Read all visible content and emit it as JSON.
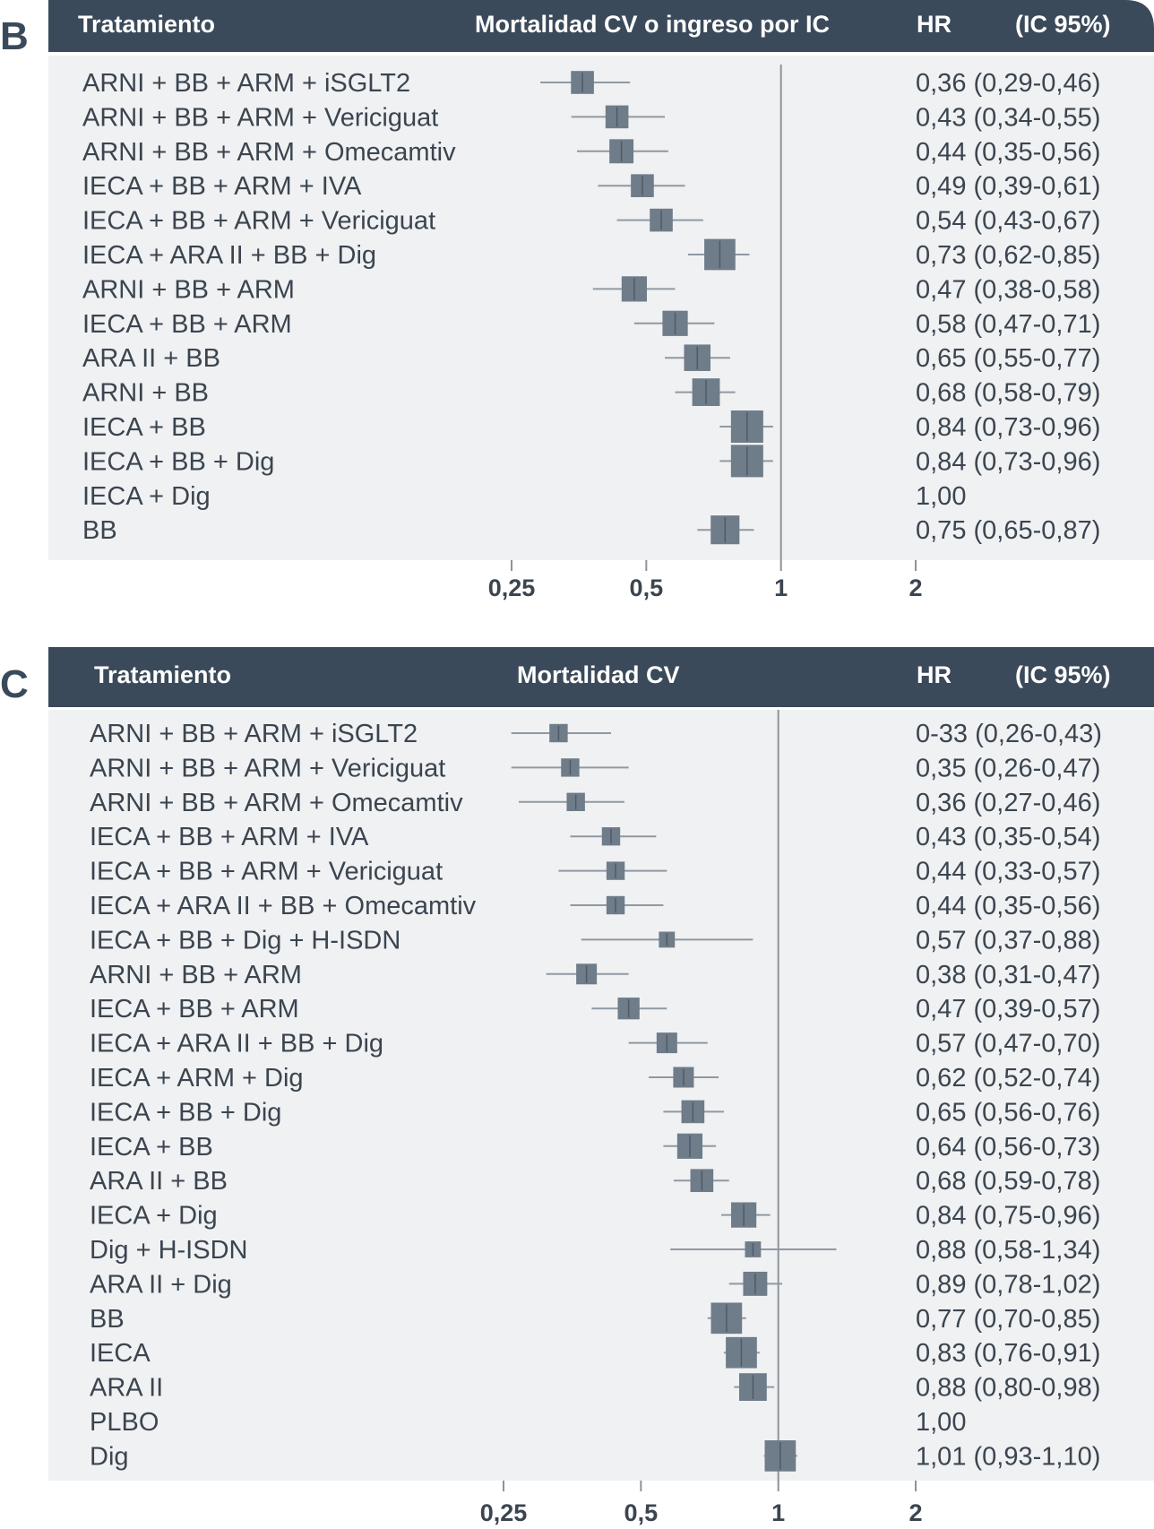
{
  "chart_data": [
    {
      "type": "forest",
      "panel_label": "B",
      "header": {
        "col_treatment": "Tratamiento",
        "col_outcome": "Mortalidad CV o ingreso por IC",
        "col_hr": "HR",
        "col_ci": "(IC 95%)"
      },
      "x_scale": "log",
      "xlim": [
        0.25,
        2
      ],
      "reference_line": 1,
      "x_ticks": [
        0.25,
        0.5,
        1,
        2
      ],
      "x_tick_labels": [
        "0,25",
        "0,5",
        "1",
        "2"
      ],
      "rows": [
        {
          "label": "ARNI + BB + ARM + iSGLT2",
          "hr": 0.36,
          "lo": 0.29,
          "hi": 0.46,
          "text": "0,36 (0,29-0,46)",
          "weight": 0.6
        },
        {
          "label": "ARNI + BB + ARM + Vericiguat",
          "hr": 0.43,
          "lo": 0.34,
          "hi": 0.55,
          "text": "0,43 (0,34-0,55)",
          "weight": 0.6
        },
        {
          "label": "ARNI + BB + ARM + Omecamtiv",
          "hr": 0.44,
          "lo": 0.35,
          "hi": 0.56,
          "text": "0,44 (0,35-0,56)",
          "weight": 0.65
        },
        {
          "label": "IECA + BB + ARM + IVA",
          "hr": 0.49,
          "lo": 0.39,
          "hi": 0.61,
          "text": "0,49 (0,39-0,61)",
          "weight": 0.6
        },
        {
          "label": "IECA + BB + ARM + Vericiguat",
          "hr": 0.54,
          "lo": 0.43,
          "hi": 0.67,
          "text": "0,54 (0,43-0,67)",
          "weight": 0.6
        },
        {
          "label": "IECA + ARA II + BB + Dig",
          "hr": 0.73,
          "lo": 0.62,
          "hi": 0.85,
          "text": "0,73 (0,62-0,85)",
          "weight": 0.95
        },
        {
          "label": "ARNI + BB + ARM",
          "hr": 0.47,
          "lo": 0.38,
          "hi": 0.58,
          "text": "0,47 (0,38-0,58)",
          "weight": 0.7
        },
        {
          "label": "IECA + BB + ARM",
          "hr": 0.58,
          "lo": 0.47,
          "hi": 0.71,
          "text": "0,58 (0,47-0,71)",
          "weight": 0.7
        },
        {
          "label": "ARA II + BB",
          "hr": 0.65,
          "lo": 0.55,
          "hi": 0.77,
          "text": "0,65 (0,55-0,77)",
          "weight": 0.75
        },
        {
          "label": "ARNI + BB",
          "hr": 0.68,
          "lo": 0.58,
          "hi": 0.79,
          "text": "0,68 (0,58-0,79)",
          "weight": 0.8
        },
        {
          "label": "IECA + BB",
          "hr": 0.84,
          "lo": 0.73,
          "hi": 0.96,
          "text": "0,84 (0,73-0,96)",
          "weight": 1.0
        },
        {
          "label": "IECA + BB + Dig",
          "hr": 0.84,
          "lo": 0.73,
          "hi": 0.96,
          "text": "0,84 (0,73-0,96)",
          "weight": 1.0
        },
        {
          "label": "IECA + Dig",
          "hr": null,
          "lo": null,
          "hi": null,
          "text": "1,00",
          "weight": 0
        },
        {
          "label": "BB",
          "hr": 0.75,
          "lo": 0.65,
          "hi": 0.87,
          "text": "0,75 (0,65-0,87)",
          "weight": 0.85
        }
      ]
    },
    {
      "type": "forest",
      "panel_label": "C",
      "header": {
        "col_treatment": "Tratamiento",
        "col_outcome": "Mortalidad CV",
        "col_hr": "HR",
        "col_ci": "(IC 95%)"
      },
      "x_scale": "log",
      "xlim": [
        0.25,
        2
      ],
      "reference_line": 1,
      "x_ticks": [
        0.25,
        0.5,
        1,
        2
      ],
      "x_tick_labels": [
        "0,25",
        "0,5",
        "1",
        "2"
      ],
      "rows": [
        {
          "label": "ARNI + BB + ARM + iSGLT2",
          "hr": 0.33,
          "lo": 0.26,
          "hi": 0.43,
          "text": "0-33 (0,26-0,43)",
          "weight": 0.4
        },
        {
          "label": "ARNI + BB + ARM + Vericiguat",
          "hr": 0.35,
          "lo": 0.26,
          "hi": 0.47,
          "text": "0,35 (0,26-0,47)",
          "weight": 0.4
        },
        {
          "label": "ARNI + BB + ARM + Omecamtiv",
          "hr": 0.36,
          "lo": 0.27,
          "hi": 0.46,
          "text": "0,36 (0,27-0,46)",
          "weight": 0.4
        },
        {
          "label": "IECA + BB + ARM + IVA",
          "hr": 0.43,
          "lo": 0.35,
          "hi": 0.54,
          "text": "0,43 (0,35-0,54)",
          "weight": 0.4
        },
        {
          "label": "IECA + BB + ARM + Vericiguat",
          "hr": 0.44,
          "lo": 0.33,
          "hi": 0.57,
          "text": "0,44 (0,33-0,57)",
          "weight": 0.4
        },
        {
          "label": "IECA + ARA II + BB + Omecamtiv",
          "hr": 0.44,
          "lo": 0.35,
          "hi": 0.56,
          "text": "0,44 (0,35-0,56)",
          "weight": 0.4
        },
        {
          "label": "IECA + BB + Dig + H-ISDN",
          "hr": 0.57,
          "lo": 0.37,
          "hi": 0.88,
          "text": "0,57 (0,37-0,88)",
          "weight": 0.3
        },
        {
          "label": "ARNI + BB + ARM",
          "hr": 0.38,
          "lo": 0.31,
          "hi": 0.47,
          "text": "0,38 (0,31-0,47)",
          "weight": 0.5
        },
        {
          "label": "IECA + BB + ARM",
          "hr": 0.47,
          "lo": 0.39,
          "hi": 0.57,
          "text": "0,47 (0,39-0,57)",
          "weight": 0.55
        },
        {
          "label": "IECA + ARA II + BB + Dig",
          "hr": 0.57,
          "lo": 0.47,
          "hi": 0.7,
          "text": "0,57 (0,47-0,70)",
          "weight": 0.5
        },
        {
          "label": "IECA + ARM + Dig",
          "hr": 0.62,
          "lo": 0.52,
          "hi": 0.74,
          "text": "0,62 (0,52-0,74)",
          "weight": 0.5
        },
        {
          "label": "IECA + BB + Dig",
          "hr": 0.65,
          "lo": 0.56,
          "hi": 0.76,
          "text": "0,65 (0,56-0,76)",
          "weight": 0.6
        },
        {
          "label": "IECA + BB",
          "hr": 0.64,
          "lo": 0.56,
          "hi": 0.73,
          "text": "0,64 (0,56-0,73)",
          "weight": 0.7
        },
        {
          "label": "ARA II + BB",
          "hr": 0.68,
          "lo": 0.59,
          "hi": 0.78,
          "text": "0,68 (0,59-0,78)",
          "weight": 0.6
        },
        {
          "label": "IECA + Dig",
          "hr": 0.84,
          "lo": 0.75,
          "hi": 0.96,
          "text": "0,84 (0,75-0,96)",
          "weight": 0.7
        },
        {
          "label": "Dig + H-ISDN",
          "hr": 0.88,
          "lo": 0.58,
          "hi": 1.34,
          "text": "0,88 (0,58-1,34)",
          "weight": 0.3
        },
        {
          "label": "ARA II + Dig",
          "hr": 0.89,
          "lo": 0.78,
          "hi": 1.02,
          "text": "0,89 (0,78-1,02)",
          "weight": 0.65
        },
        {
          "label": "BB",
          "hr": 0.77,
          "lo": 0.7,
          "hi": 0.85,
          "text": "0,77 (0,70-0,85)",
          "weight": 0.95
        },
        {
          "label": "IECA",
          "hr": 0.83,
          "lo": 0.76,
          "hi": 0.91,
          "text": "0,83 (0,76-0,91)",
          "weight": 0.95
        },
        {
          "label": "ARA II",
          "hr": 0.88,
          "lo": 0.8,
          "hi": 0.98,
          "text": "0,88 (0,80-0,98)",
          "weight": 0.8
        },
        {
          "label": "PLBO",
          "hr": null,
          "lo": null,
          "hi": null,
          "text": "1,00",
          "weight": 0
        },
        {
          "label": "Dig",
          "hr": 1.01,
          "lo": 0.93,
          "hi": 1.1,
          "text": "1,01 (0,93-1,10)",
          "weight": 0.95
        }
      ]
    }
  ],
  "colors": {
    "header_bg": "#3b4a5a",
    "panel_bg": "#f0f1f2",
    "box": "#6f7c89",
    "ci_line": "#8f99a3",
    "ref_line": "#8a939c",
    "text": "#3b4550"
  }
}
